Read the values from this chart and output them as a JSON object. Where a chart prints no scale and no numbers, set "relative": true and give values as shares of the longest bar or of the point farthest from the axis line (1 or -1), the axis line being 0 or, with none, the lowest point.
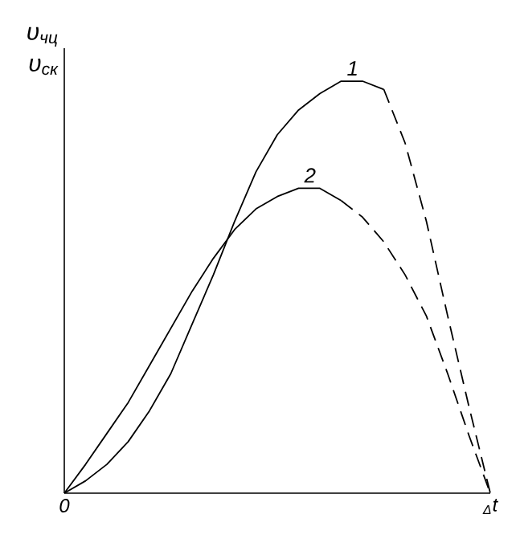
{
  "chart_data": {
    "type": "line",
    "relative": true,
    "ylabel": "υ$_{чц}$",
    "annotations": [
      "υ$_{ск}$"
    ],
    "tick_labels": "x",
    "categories": [
      "0",
      null,
      null,
      null,
      null,
      null,
      null,
      null,
      null,
      null,
      null,
      null,
      null,
      null,
      null,
      null,
      null,
      null,
      null,
      null,
      "$_{Δ}$t"
    ],
    "series": [
      {
        "name": "1",
        "color": "#000000",
        "line_style": "solid",
        "values": [
          0,
          0.03,
          0.07,
          0.125,
          0.2,
          0.29,
          0.41,
          0.53,
          0.66,
          0.78,
          0.87,
          0.93,
          0.97,
          1,
          1,
          0.98,
          null,
          null,
          null,
          null,
          null
        ]
      },
      {
        "color": "#000000",
        "line_style": "dashed",
        "values": [
          null,
          null,
          null,
          null,
          null,
          null,
          null,
          null,
          null,
          null,
          null,
          null,
          null,
          null,
          null,
          0.98,
          0.85,
          0.66,
          0.43,
          0.21,
          0
        ]
      },
      {
        "name": "2",
        "color": "#000000",
        "line_style": "solid",
        "values": [
          0,
          0.07,
          0.145,
          0.22,
          0.31,
          0.4,
          0.49,
          0.57,
          0.64,
          0.69,
          0.72,
          0.74,
          0.74,
          0.71,
          null,
          null,
          null,
          null,
          null,
          null,
          null
        ]
      },
      {
        "color": "#000000",
        "line_style": "dashed",
        "values": [
          null,
          null,
          null,
          null,
          null,
          null,
          null,
          null,
          null,
          null,
          null,
          null,
          null,
          0.71,
          0.67,
          0.61,
          0.53,
          0.43,
          0.29,
          0.14,
          0
        ]
      }
    ]
  }
}
